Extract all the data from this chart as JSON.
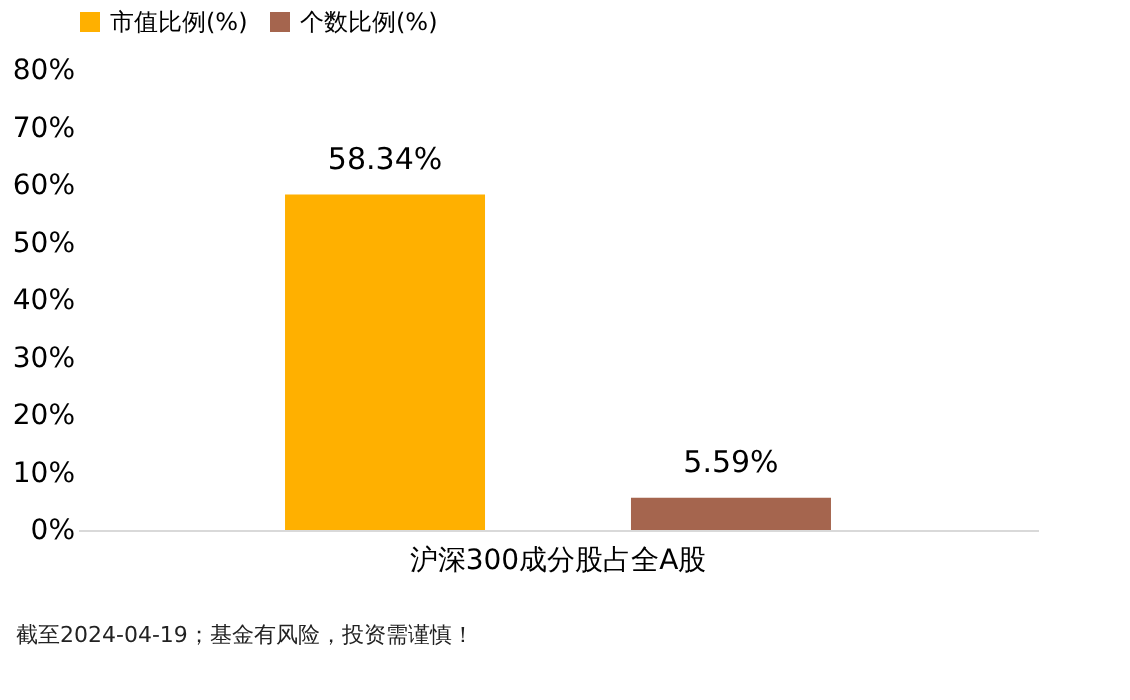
{
  "chart_data": {
    "type": "bar",
    "categories": [
      "沪深300成分股占全A股"
    ],
    "series": [
      {
        "name": "市值比例(%)",
        "color": "#ffb000",
        "values": [
          58.34
        ],
        "value_labels": [
          "58.34%"
        ]
      },
      {
        "name": "个数比例(%)",
        "color": "#a5654e",
        "values": [
          5.59
        ],
        "value_labels": [
          "5.59%"
        ]
      }
    ],
    "ylim": [
      0,
      80
    ],
    "yticks": [
      {
        "value": 0,
        "label": "0%"
      },
      {
        "value": 10,
        "label": "10%"
      },
      {
        "value": 20,
        "label": "20%"
      },
      {
        "value": 30,
        "label": "30%"
      },
      {
        "value": 40,
        "label": "40%"
      },
      {
        "value": 50,
        "label": "50%"
      },
      {
        "value": 60,
        "label": "60%"
      },
      {
        "value": 70,
        "label": "70%"
      },
      {
        "value": 80,
        "label": "80%"
      }
    ],
    "legend": "top",
    "grid": false,
    "annotations": [
      "截至2024-04-19；基金有风险，投资需谨慎！"
    ]
  }
}
